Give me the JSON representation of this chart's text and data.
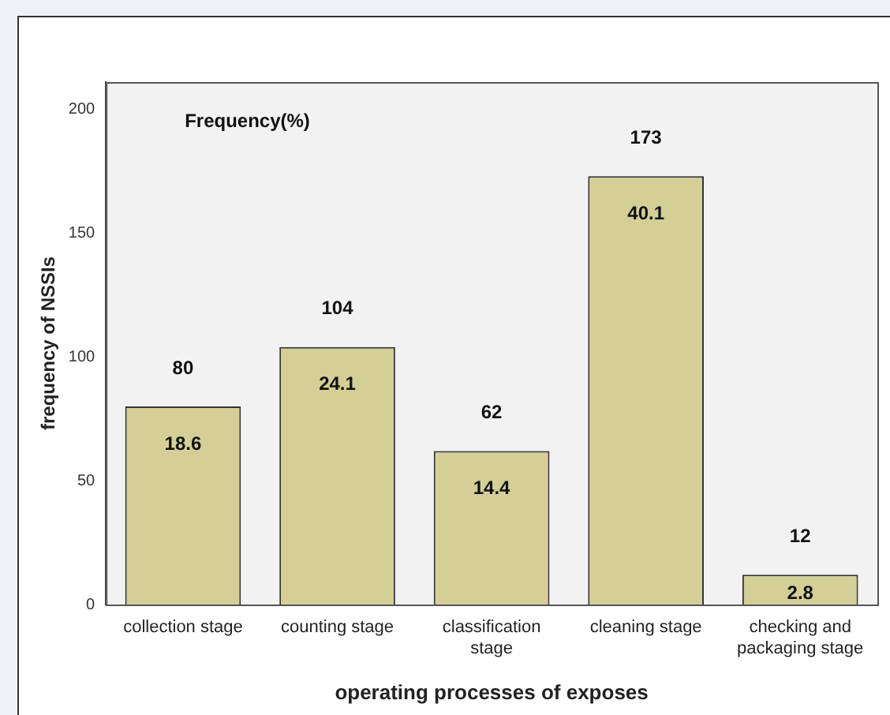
{
  "chart_data": {
    "type": "bar",
    "xlabel": "operating processes of exposes",
    "ylabel": "frequency of NSSIs",
    "categories": [
      "collection stage",
      "counting stage",
      "classification stage",
      "cleaning stage",
      "checking and packaging stage"
    ],
    "values": [
      80,
      104,
      62,
      173,
      12
    ],
    "color": "#d3cf97",
    "data_labels": true,
    "ylim": [
      0,
      211
    ],
    "yticks": [
      0,
      50,
      100,
      150,
      200
    ],
    "grid": false,
    "legend": false,
    "annotations": [
      "Frequency(%)",
      {
        "text": "18.6",
        "x": "collection stage",
        "y": 80
      },
      {
        "text": "24.1",
        "x": "counting stage",
        "y": 104
      },
      {
        "text": "14.4",
        "x": "classification stage",
        "y": 62
      },
      {
        "text": "40.1",
        "x": "cleaning stage",
        "y": 173
      },
      {
        "text": "2.8",
        "x": "checking and packaging stage",
        "y": 12
      }
    ]
  }
}
